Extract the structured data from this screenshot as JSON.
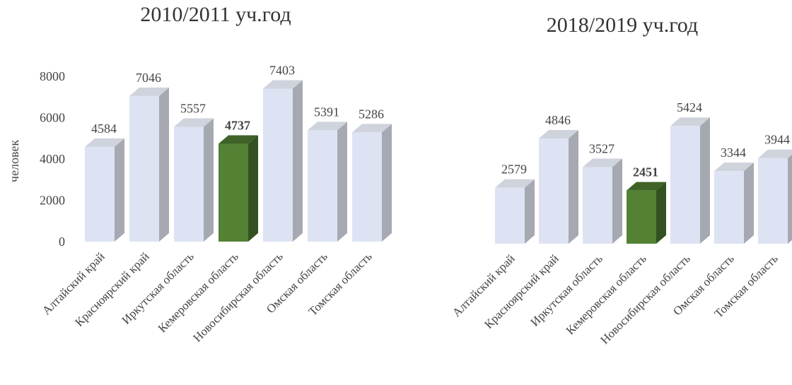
{
  "chart_data": [
    {
      "type": "bar",
      "title": "2010/2011  уч.год",
      "y_label": "человек",
      "categories": [
        "Алтайский край",
        "Красноярский край",
        "Иркутская область",
        "Кемеровская область",
        "Новосибирская область",
        "Омская область",
        "Томская область"
      ],
      "values": [
        4584,
        7046,
        5557,
        4737,
        7403,
        5391,
        5286
      ],
      "color": "#dde3f3",
      "highlight_color": "#548235",
      "highlight_index": 3,
      "ylim": [
        0,
        8000
      ],
      "yticks": [
        0,
        2000,
        4000,
        6000,
        8000
      ]
    },
    {
      "type": "bar",
      "title": "2018/2019  уч.год",
      "categories": [
        "Алтайский край",
        "Красноярский край",
        "Иркутская область",
        "Кемеровская область",
        "Новосибирская область",
        "Омская область",
        "Томская область"
      ],
      "values": [
        2579,
        4846,
        3527,
        2451,
        5424,
        3344,
        3944
      ],
      "color": "#dde3f3",
      "highlight_color": "#548235",
      "highlight_index": 3,
      "ylim": [
        0,
        8000
      ]
    }
  ]
}
